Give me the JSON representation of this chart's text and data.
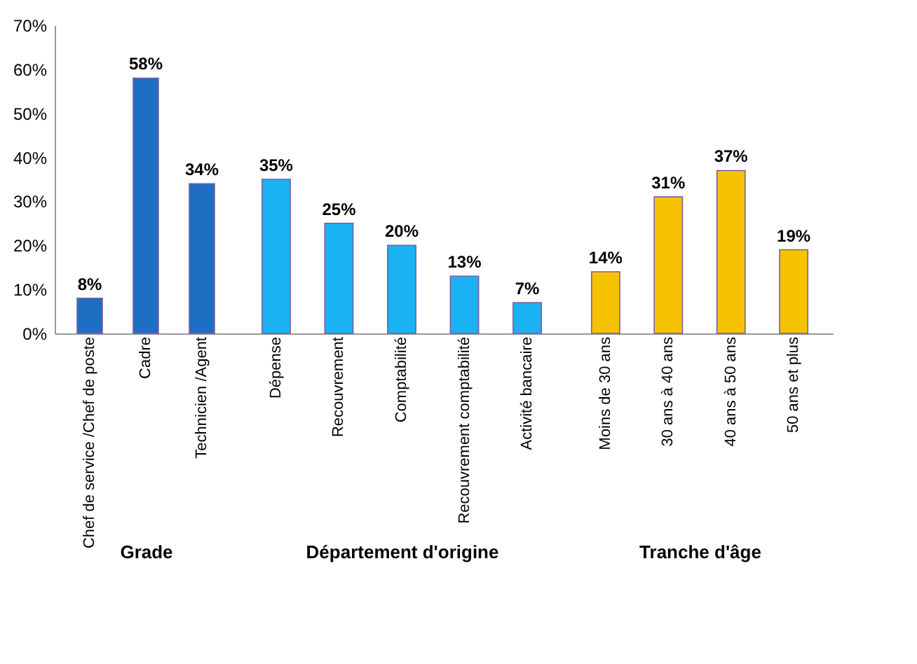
{
  "chart_data": [
    {
      "type": "bar",
      "xlabel": "Grade",
      "categories": [
        "Chef de service /Chef de poste",
        "Cadre",
        "Technicien /Agent"
      ],
      "values": [
        8,
        58,
        34
      ],
      "colors": [
        "#1e6fc4",
        "#1e6fc4",
        "#1e6fc4"
      ],
      "value_labels": [
        "8%",
        "58%",
        "34%"
      ],
      "ylim": [
        0,
        70
      ],
      "yticks": [
        {
          "value": 0,
          "label": "0%"
        },
        {
          "value": 10,
          "label": "10%"
        },
        {
          "value": 20,
          "label": "20%"
        },
        {
          "value": 30,
          "label": "30%"
        },
        {
          "value": 40,
          "label": "40%"
        },
        {
          "value": 50,
          "label": "50%"
        },
        {
          "value": 60,
          "label": "60%"
        },
        {
          "value": 70,
          "label": "70%"
        }
      ]
    },
    {
      "type": "bar",
      "xlabel": "Département d'origine",
      "categories": [
        "Dépense",
        "Recouvrement",
        "Comptabilité",
        "Recouvrement comptabilité",
        "Activité bancaire"
      ],
      "values": [
        35,
        25,
        20,
        13,
        7
      ],
      "colors": [
        "#1ab2f2",
        "#1ab2f2",
        "#1ab2f2",
        "#1ab2f2",
        "#1ab2f2"
      ],
      "value_labels": [
        "35%",
        "25%",
        "20%",
        "13%",
        "7%"
      ],
      "tick_labels": "x"
    },
    {
      "type": "bar",
      "xlabel": "Tranche d'âge",
      "categories": [
        "Moins de 30 ans",
        "30 ans à 40 ans",
        "40 ans à 50 ans",
        "50 ans et plus"
      ],
      "values": [
        14,
        31,
        37,
        19
      ],
      "colors": [
        "#f6c200",
        "#f6c200",
        "#f6c200",
        "#f6c200"
      ],
      "value_labels": [
        "14%",
        "31%",
        "37%",
        "19%"
      ],
      "tick_labels": "x"
    }
  ]
}
